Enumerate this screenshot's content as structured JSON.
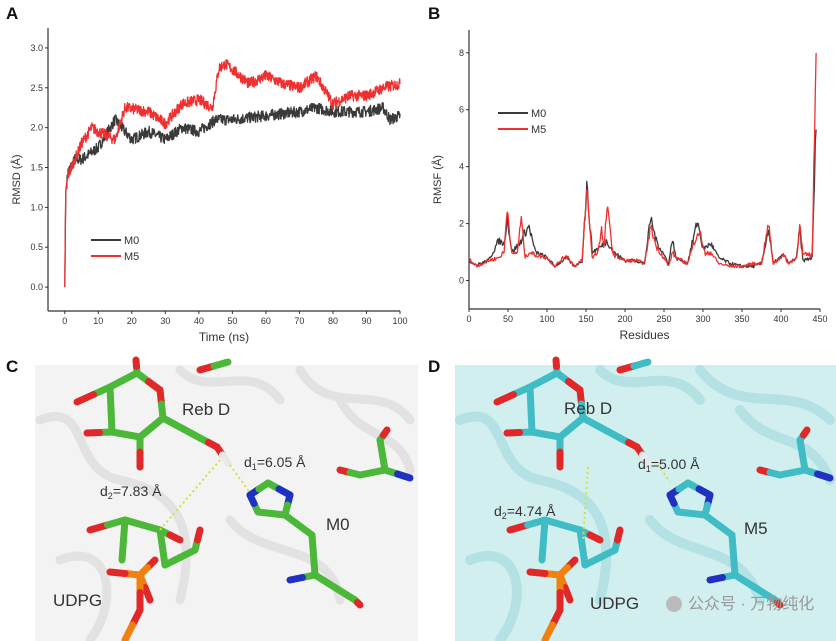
{
  "panels": {
    "a": {
      "letter": "A"
    },
    "b": {
      "letter": "B"
    },
    "c": {
      "letter": "C",
      "ligand": "Reb D",
      "d1_sym": "d",
      "d1_sub": "1",
      "d1_val": "=6.05 Å",
      "d2_sym": "d",
      "d2_sub": "2",
      "d2_val": "=7.83 Å",
      "residue": "M0",
      "cofactor": "UDPG"
    },
    "d": {
      "letter": "D",
      "ligand": "Reb D",
      "d1_sym": "d",
      "d1_sub": "1",
      "d1_val": "=5.00 Å",
      "d2_sym": "d",
      "d2_sub": "2",
      "d2_val": "=4.74 Å",
      "residue": "M5",
      "cofactor": "UDPG"
    }
  },
  "watermark": "公众号 · 万物纯化",
  "colors": {
    "m0": "#3a3a3a",
    "m5": "#f03030",
    "carbon_c": "#4cb83a",
    "carbon_d": "#3fbcc4",
    "oxygen": "#e02828",
    "nitrogen": "#2030c0",
    "phosphorus": "#f08010",
    "bg_c": "#f2f2f2",
    "bg_d": "#cdeeee"
  },
  "chart_data": [
    {
      "type": "line",
      "title": "",
      "xlabel": "Time (ns)",
      "ylabel": "RMSD (Å)",
      "xlim": [
        -5,
        100
      ],
      "ylim": [
        -0.3,
        3.25
      ],
      "xticks": [
        "0",
        "10",
        "20",
        "30",
        "40",
        "50",
        "60",
        "70",
        "80",
        "90",
        "100"
      ],
      "yticks": [
        "0.0",
        "0.5",
        "1.0",
        "1.5",
        "2.0",
        "2.5",
        "3.0"
      ],
      "grid": false,
      "legend": "center-left",
      "series": [
        {
          "name": "M0",
          "points": [
            [
              0,
              0
            ],
            [
              0.3,
              1.2
            ],
            [
              1,
              1.45
            ],
            [
              3,
              1.6
            ],
            [
              5,
              1.6
            ],
            [
              10,
              1.75
            ],
            [
              15,
              2.1
            ],
            [
              17,
              2.0
            ],
            [
              20,
              1.85
            ],
            [
              25,
              1.95
            ],
            [
              30,
              1.85
            ],
            [
              35,
              2.0
            ],
            [
              40,
              1.95
            ],
            [
              45,
              2.1
            ],
            [
              50,
              2.1
            ],
            [
              60,
              2.15
            ],
            [
              70,
              2.2
            ],
            [
              75,
              2.25
            ],
            [
              80,
              2.2
            ],
            [
              90,
              2.2
            ],
            [
              95,
              2.25
            ],
            [
              97,
              2.1
            ],
            [
              100,
              2.15
            ]
          ]
        },
        {
          "name": "M5",
          "points": [
            [
              0,
              0
            ],
            [
              0.3,
              1.2
            ],
            [
              1,
              1.4
            ],
            [
              3,
              1.6
            ],
            [
              5,
              1.8
            ],
            [
              8,
              2.0
            ],
            [
              10,
              1.95
            ],
            [
              15,
              1.85
            ],
            [
              18,
              2.25
            ],
            [
              25,
              2.2
            ],
            [
              30,
              2.05
            ],
            [
              35,
              2.3
            ],
            [
              40,
              2.35
            ],
            [
              44,
              2.25
            ],
            [
              46,
              2.75
            ],
            [
              48,
              2.8
            ],
            [
              55,
              2.55
            ],
            [
              60,
              2.65
            ],
            [
              65,
              2.55
            ],
            [
              70,
              2.5
            ],
            [
              75,
              2.65
            ],
            [
              80,
              2.3
            ],
            [
              85,
              2.4
            ],
            [
              90,
              2.4
            ],
            [
              95,
              2.5
            ],
            [
              100,
              2.55
            ]
          ]
        }
      ]
    },
    {
      "type": "line",
      "title": "",
      "xlabel": "Residues",
      "ylabel": "RMSF (Å)",
      "xlim": [
        0,
        450
      ],
      "ylim": [
        -1,
        8.8
      ],
      "xticks": [
        "0",
        "50",
        "100",
        "150",
        "200",
        "250",
        "300",
        "350",
        "400",
        "450"
      ],
      "yticks": [
        "0",
        "2",
        "4",
        "6",
        "8"
      ],
      "grid": false,
      "legend": "upper-left",
      "series": [
        {
          "name": "M0",
          "points": [
            [
              0,
              0.7
            ],
            [
              10,
              0.55
            ],
            [
              25,
              0.7
            ],
            [
              38,
              1.4
            ],
            [
              45,
              1.3
            ],
            [
              49,
              2.2
            ],
            [
              55,
              1.0
            ],
            [
              65,
              1.3
            ],
            [
              70,
              1.6
            ],
            [
              77,
              1.9
            ],
            [
              85,
              1.0
            ],
            [
              100,
              0.8
            ],
            [
              110,
              0.5
            ],
            [
              125,
              0.8
            ],
            [
              135,
              0.5
            ],
            [
              145,
              0.7
            ],
            [
              151,
              3.3
            ],
            [
              158,
              1.0
            ],
            [
              170,
              1.2
            ],
            [
              177,
              1.4
            ],
            [
              185,
              1.0
            ],
            [
              200,
              0.7
            ],
            [
              215,
              0.7
            ],
            [
              225,
              0.6
            ],
            [
              230,
              1.6
            ],
            [
              233,
              2.2
            ],
            [
              240,
              1.4
            ],
            [
              250,
              0.9
            ],
            [
              256,
              0.6
            ],
            [
              261,
              1.5
            ],
            [
              265,
              0.8
            ],
            [
              280,
              0.6
            ],
            [
              293,
              2.1
            ],
            [
              300,
              1.1
            ],
            [
              310,
              1.3
            ],
            [
              320,
              0.8
            ],
            [
              335,
              0.6
            ],
            [
              350,
              0.5
            ],
            [
              365,
              0.5
            ],
            [
              375,
              0.6
            ],
            [
              384,
              1.8
            ],
            [
              390,
              0.6
            ],
            [
              403,
              0.9
            ],
            [
              410,
              0.6
            ],
            [
              420,
              0.8
            ],
            [
              424,
              1.8
            ],
            [
              428,
              0.7
            ],
            [
              440,
              0.8
            ],
            [
              445,
              5.5
            ]
          ]
        },
        {
          "name": "M5",
          "points": [
            [
              0,
              0.75
            ],
            [
              10,
              0.5
            ],
            [
              25,
              0.7
            ],
            [
              38,
              0.8
            ],
            [
              45,
              1.0
            ],
            [
              49,
              2.6
            ],
            [
              55,
              0.9
            ],
            [
              62,
              1.0
            ],
            [
              67,
              2.2
            ],
            [
              72,
              0.8
            ],
            [
              77,
              1.0
            ],
            [
              85,
              0.9
            ],
            [
              100,
              0.8
            ],
            [
              110,
              0.5
            ],
            [
              125,
              0.9
            ],
            [
              135,
              0.5
            ],
            [
              145,
              0.7
            ],
            [
              151,
              3.2
            ],
            [
              158,
              0.8
            ],
            [
              165,
              1.0
            ],
            [
              170,
              1.8
            ],
            [
              173,
              1.1
            ],
            [
              177,
              2.6
            ],
            [
              185,
              0.9
            ],
            [
              200,
              0.7
            ],
            [
              215,
              0.7
            ],
            [
              225,
              0.6
            ],
            [
              233,
              1.9
            ],
            [
              240,
              1.2
            ],
            [
              250,
              0.8
            ],
            [
              256,
              0.5
            ],
            [
              261,
              1.0
            ],
            [
              265,
              0.8
            ],
            [
              280,
              0.6
            ],
            [
              293,
              1.7
            ],
            [
              297,
              1.6
            ],
            [
              303,
              0.9
            ],
            [
              310,
              1.0
            ],
            [
              320,
              0.6
            ],
            [
              335,
              0.5
            ],
            [
              350,
              0.5
            ],
            [
              365,
              0.6
            ],
            [
              375,
              0.6
            ],
            [
              384,
              2.0
            ],
            [
              390,
              0.6
            ],
            [
              403,
              0.9
            ],
            [
              410,
              0.6
            ],
            [
              420,
              0.8
            ],
            [
              424,
              2.0
            ],
            [
              428,
              0.9
            ],
            [
              440,
              0.9
            ],
            [
              445,
              8.0
            ]
          ]
        }
      ]
    }
  ]
}
